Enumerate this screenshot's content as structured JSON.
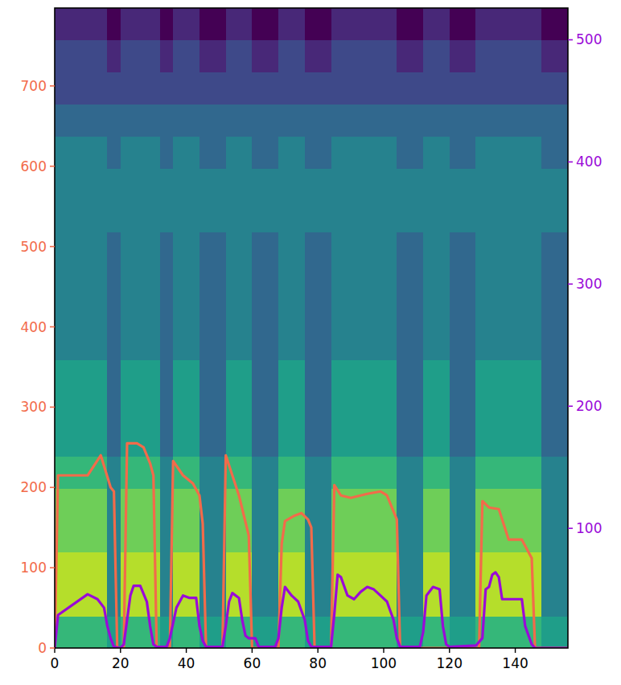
{
  "chart_data": {
    "type": "line",
    "xlim": [
      0,
      156
    ],
    "xticks": [
      0,
      20,
      40,
      60,
      80,
      100,
      120,
      140
    ],
    "ylim": [
      0,
      797
    ],
    "yticks": [
      0,
      100,
      200,
      300,
      400,
      500,
      600,
      700
    ],
    "y2lim": [
      2,
      526
    ],
    "y2ticks": [
      100,
      200,
      300,
      400,
      500
    ],
    "zlim": [
      0,
      9
    ],
    "cells": [
      [
        6,
        6,
        6,
        6,
        5,
        6,
        6,
        6,
        5,
        6,
        6,
        5,
        5,
        6,
        6,
        5,
        5,
        6,
        6,
        5,
        5,
        6,
        6,
        6,
        6,
        6,
        5,
        5,
        6,
        6,
        5,
        5,
        6,
        6,
        6,
        6,
        6,
        5,
        5
      ],
      [
        8,
        8,
        8,
        8,
        4,
        8,
        8,
        8,
        4,
        8,
        8,
        4,
        4,
        8,
        8,
        4,
        4,
        8,
        8,
        4,
        4,
        8,
        8,
        8,
        8,
        8,
        4,
        4,
        8,
        8,
        4,
        4,
        8,
        8,
        8,
        8,
        8,
        4,
        4
      ],
      [
        8,
        8,
        8,
        8,
        4,
        8,
        8,
        8,
        4,
        8,
        8,
        4,
        4,
        8,
        8,
        4,
        4,
        8,
        8,
        4,
        4,
        8,
        8,
        8,
        8,
        8,
        4,
        4,
        8,
        8,
        4,
        4,
        8,
        8,
        8,
        8,
        8,
        4,
        4
      ],
      [
        7,
        7,
        7,
        7,
        4,
        7,
        7,
        7,
        4,
        7,
        7,
        4,
        4,
        7,
        7,
        4,
        4,
        7,
        7,
        4,
        4,
        7,
        7,
        7,
        7,
        7,
        4,
        4,
        7,
        7,
        4,
        4,
        7,
        7,
        7,
        7,
        7,
        4,
        4
      ],
      [
        7,
        7,
        7,
        7,
        4,
        7,
        7,
        7,
        4,
        7,
        7,
        4,
        4,
        7,
        7,
        4,
        4,
        7,
        7,
        4,
        4,
        7,
        7,
        7,
        7,
        7,
        4,
        4,
        7,
        7,
        4,
        4,
        7,
        7,
        7,
        7,
        7,
        4,
        4
      ],
      [
        6,
        6,
        6,
        6,
        4,
        6,
        6,
        6,
        4,
        6,
        6,
        4,
        4,
        6,
        6,
        4,
        4,
        6,
        6,
        4,
        4,
        6,
        6,
        6,
        6,
        6,
        4,
        4,
        6,
        6,
        4,
        4,
        6,
        6,
        6,
        6,
        6,
        4,
        4
      ],
      [
        5,
        5,
        5,
        5,
        3,
        5,
        5,
        5,
        3,
        5,
        5,
        3,
        3,
        5,
        5,
        3,
        3,
        5,
        5,
        3,
        3,
        5,
        5,
        5,
        5,
        5,
        3,
        3,
        5,
        5,
        3,
        3,
        5,
        5,
        5,
        5,
        5,
        3,
        3
      ],
      [
        5,
        5,
        5,
        5,
        3,
        5,
        5,
        5,
        3,
        5,
        5,
        3,
        3,
        5,
        5,
        3,
        3,
        5,
        5,
        3,
        3,
        5,
        5,
        5,
        5,
        5,
        3,
        3,
        5,
        5,
        3,
        3,
        5,
        5,
        5,
        5,
        5,
        3,
        3
      ],
      [
        5,
        5,
        5,
        5,
        3,
        5,
        5,
        5,
        3,
        5,
        5,
        3,
        3,
        5,
        5,
        3,
        3,
        5,
        5,
        3,
        3,
        5,
        5,
        5,
        5,
        5,
        3,
        3,
        5,
        5,
        3,
        3,
        5,
        5,
        5,
        5,
        5,
        3,
        3
      ],
      [
        4,
        4,
        4,
        4,
        3,
        4,
        4,
        4,
        3,
        4,
        4,
        3,
        3,
        4,
        4,
        3,
        3,
        4,
        4,
        3,
        3,
        4,
        4,
        4,
        4,
        4,
        3,
        3,
        4,
        4,
        3,
        3,
        4,
        4,
        4,
        4,
        4,
        3,
        3
      ],
      [
        4,
        4,
        4,
        4,
        3,
        4,
        4,
        4,
        3,
        4,
        4,
        3,
        3,
        4,
        4,
        3,
        3,
        4,
        4,
        3,
        3,
        4,
        4,
        4,
        4,
        4,
        3,
        3,
        4,
        4,
        3,
        3,
        4,
        4,
        4,
        4,
        4,
        3,
        3
      ],
      [
        4,
        4,
        4,
        4,
        3,
        4,
        4,
        4,
        3,
        4,
        4,
        3,
        3,
        4,
        4,
        3,
        3,
        4,
        4,
        3,
        3,
        4,
        4,
        4,
        4,
        4,
        3,
        3,
        4,
        4,
        3,
        3,
        4,
        4,
        4,
        4,
        4,
        3,
        3
      ],
      [
        4,
        4,
        4,
        4,
        3,
        4,
        4,
        4,
        3,
        4,
        4,
        3,
        3,
        4,
        4,
        3,
        3,
        4,
        4,
        3,
        3,
        4,
        4,
        4,
        4,
        4,
        3,
        3,
        4,
        4,
        3,
        3,
        4,
        4,
        4,
        4,
        4,
        3,
        3
      ],
      [
        4,
        4,
        4,
        4,
        4,
        4,
        4,
        4,
        4,
        4,
        4,
        4,
        4,
        4,
        4,
        4,
        4,
        4,
        4,
        4,
        4,
        4,
        4,
        4,
        4,
        4,
        4,
        4,
        4,
        4,
        4,
        4,
        4,
        4,
        4,
        4,
        4,
        4,
        4
      ],
      [
        4,
        4,
        4,
        4,
        4,
        4,
        4,
        4,
        4,
        4,
        4,
        4,
        4,
        4,
        4,
        4,
        4,
        4,
        4,
        4,
        4,
        4,
        4,
        4,
        4,
        4,
        4,
        4,
        4,
        4,
        4,
        4,
        4,
        4,
        4,
        4,
        4,
        4,
        4
      ],
      [
        4,
        4,
        4,
        4,
        3,
        4,
        4,
        4,
        3,
        4,
        4,
        3,
        3,
        4,
        4,
        3,
        3,
        4,
        4,
        3,
        3,
        4,
        4,
        4,
        4,
        4,
        3,
        3,
        4,
        4,
        3,
        3,
        4,
        4,
        4,
        4,
        4,
        3,
        3
      ],
      [
        3,
        3,
        3,
        3,
        3,
        3,
        3,
        3,
        3,
        3,
        3,
        3,
        3,
        3,
        3,
        3,
        3,
        3,
        3,
        3,
        3,
        3,
        3,
        3,
        3,
        3,
        3,
        3,
        3,
        3,
        3,
        3,
        3,
        3,
        3,
        3,
        3,
        3,
        3
      ],
      [
        2,
        2,
        2,
        2,
        2,
        2,
        2,
        2,
        2,
        2,
        2,
        2,
        2,
        2,
        2,
        2,
        2,
        2,
        2,
        2,
        2,
        2,
        2,
        2,
        2,
        2,
        2,
        2,
        2,
        2,
        2,
        2,
        2,
        2,
        2,
        2,
        2,
        2,
        2
      ],
      [
        2,
        2,
        2,
        2,
        1,
        2,
        2,
        2,
        1,
        2,
        2,
        1,
        1,
        2,
        2,
        1,
        1,
        2,
        2,
        1,
        1,
        2,
        2,
        2,
        2,
        2,
        1,
        1,
        2,
        2,
        1,
        1,
        2,
        2,
        2,
        2,
        2,
        1,
        1
      ],
      [
        1,
        1,
        1,
        1,
        0,
        1,
        1,
        1,
        0,
        1,
        1,
        0,
        0,
        1,
        1,
        0,
        0,
        1,
        1,
        0,
        0,
        1,
        1,
        1,
        1,
        1,
        0,
        0,
        1,
        1,
        0,
        0,
        1,
        1,
        1,
        1,
        1,
        0,
        0
      ]
    ],
    "series": [
      {
        "color": "#f26b4a",
        "x": [
          0,
          1,
          10,
          14,
          17,
          18,
          19,
          21,
          22,
          25,
          27,
          29,
          30,
          31,
          35,
          36,
          39,
          42,
          44,
          45,
          46,
          51,
          52,
          54,
          56,
          59,
          60,
          68,
          69,
          70,
          73,
          75,
          77,
          78,
          79,
          84,
          85,
          87,
          90,
          95,
          99,
          101,
          103,
          104,
          105,
          129,
          130,
          132,
          135,
          138,
          142,
          145,
          146,
          156
        ],
        "values": [
          0,
          215,
          215,
          240,
          200,
          195,
          0,
          0,
          255,
          255,
          250,
          230,
          215,
          0,
          0,
          233,
          215,
          205,
          190,
          155,
          0,
          0,
          240,
          215,
          190,
          140,
          0,
          0,
          130,
          158,
          165,
          168,
          160,
          150,
          0,
          0,
          203,
          190,
          187,
          192,
          195,
          190,
          170,
          160,
          0,
          0,
          183,
          175,
          173,
          135,
          135,
          112,
          0,
          0
        ]
      },
      {
        "color": "#9a0ad8",
        "axis": "y2",
        "x": [
          0,
          1,
          10,
          13,
          15,
          16,
          17,
          18,
          20,
          21,
          22,
          23,
          24,
          26,
          28,
          29,
          30,
          31,
          34,
          35,
          37,
          39,
          41,
          43,
          44,
          45,
          46,
          51,
          52,
          53,
          54,
          56,
          57,
          58,
          59,
          61,
          62,
          67,
          68,
          69,
          70,
          72,
          74,
          76,
          77,
          78,
          84,
          85,
          86,
          87,
          89,
          91,
          93,
          95,
          97,
          99,
          101,
          103,
          104,
          105,
          111,
          112,
          113,
          115,
          117,
          118,
          119,
          120,
          128,
          130,
          131,
          132,
          133,
          134,
          135,
          136,
          142,
          143,
          145,
          146,
          156
        ],
        "values": [
          2,
          29,
          46,
          42,
          35,
          20,
          10,
          3,
          2,
          5,
          25,
          45,
          53,
          53,
          40,
          20,
          5,
          3,
          3,
          10,
          35,
          45,
          43,
          43,
          20,
          8,
          3,
          3,
          20,
          40,
          47,
          43,
          25,
          12,
          10,
          10,
          3,
          3,
          10,
          35,
          52,
          45,
          40,
          25,
          8,
          3,
          3,
          30,
          62,
          60,
          45,
          42,
          48,
          52,
          50,
          45,
          40,
          25,
          10,
          3,
          3,
          15,
          45,
          52,
          50,
          20,
          5,
          3,
          4,
          10,
          50,
          52,
          62,
          64,
          60,
          42,
          42,
          20,
          5,
          2,
          2
        ]
      }
    ]
  }
}
